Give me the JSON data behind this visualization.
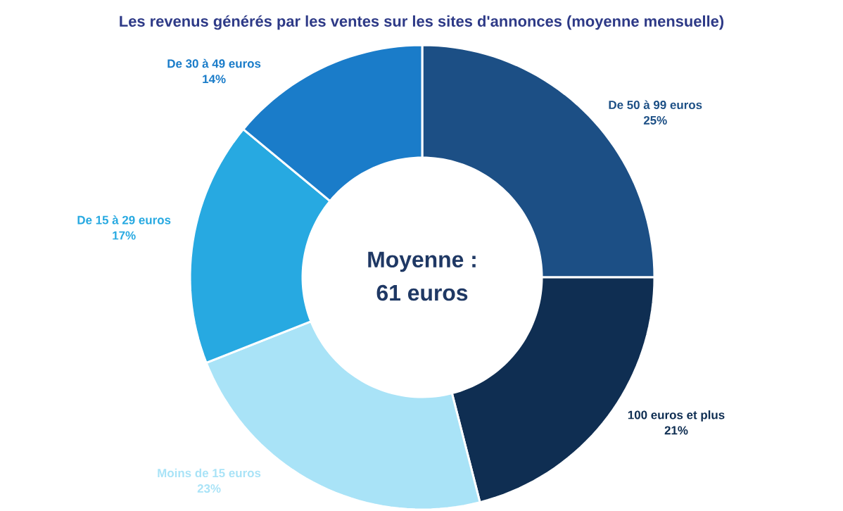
{
  "chart_data": {
    "type": "donut",
    "title": "Les revenus générés par les ventes sur les sites d'annonces (moyenne mensuelle)",
    "categories": [
      "De 50 à 99 euros",
      "100 euros et plus",
      "Moins de 15 euros",
      "De 15 à 29 euros",
      "De 30 à 49 euros"
    ],
    "values": [
      25,
      21,
      23,
      17,
      14
    ],
    "value_labels": [
      "25%",
      "21%",
      "23%",
      "17%",
      "14%"
    ],
    "colors": [
      "#1c4f85",
      "#0f2e52",
      "#a9e3f7",
      "#27a9e1",
      "#1a7cc9"
    ],
    "annotations": [
      "Moyenne :",
      "61 euros"
    ]
  }
}
